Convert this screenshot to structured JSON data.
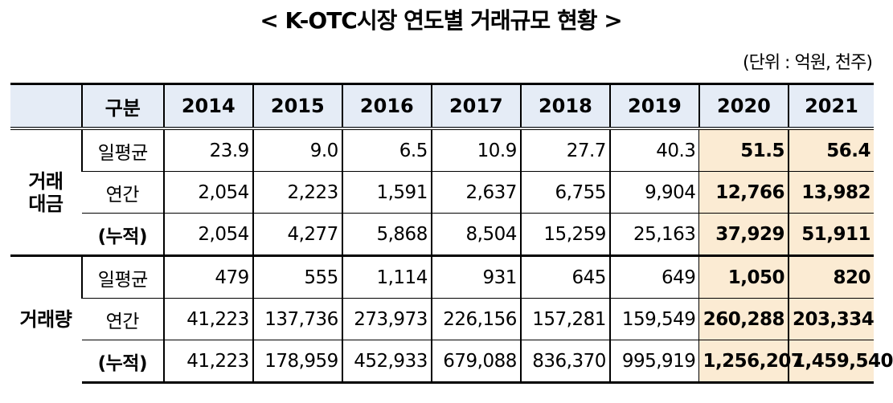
{
  "title": "< K-OTC시장 연도별 거래규모 현황 >",
  "unit": "(단위 : 억원, 천주)",
  "table": {
    "header": {
      "category": "구분",
      "years": [
        "2014",
        "2015",
        "2016",
        "2017",
        "2018",
        "2019",
        "2020",
        "2021"
      ]
    },
    "groups": [
      {
        "label": "거래\n대금",
        "label_line1": "거래",
        "label_line2": "대금",
        "rows": [
          {
            "label": "일평균",
            "values": [
              "23.9",
              "9.0",
              "6.5",
              "10.9",
              "27.7",
              "40.3",
              "51.5",
              "56.4"
            ]
          },
          {
            "label": "연간",
            "values": [
              "2,054",
              "2,223",
              "1,591",
              "2,637",
              "6,755",
              "9,904",
              "12,766",
              "13,982"
            ]
          },
          {
            "label": "(누적)",
            "values": [
              "2,054",
              "4,277",
              "5,868",
              "8,504",
              "15,259",
              "25,163",
              "37,929",
              "51,911"
            ]
          }
        ]
      },
      {
        "label": "거래량",
        "rows": [
          {
            "label": "일평균",
            "values": [
              "479",
              "555",
              "1,114",
              "931",
              "645",
              "649",
              "1,050",
              "820"
            ]
          },
          {
            "label": "연간",
            "values": [
              "41,223",
              "137,736",
              "273,973",
              "226,156",
              "157,281",
              "159,549",
              "260,288",
              "203,334"
            ]
          },
          {
            "label": "(누적)",
            "values": [
              "41,223",
              "178,959",
              "452,933",
              "679,088",
              "836,370",
              "995,919",
              "1,256,207",
              "1,459,540"
            ]
          }
        ]
      }
    ],
    "highlight_years": [
      "2020",
      "2021"
    ],
    "colors": {
      "header_bg": "#e5ecf6",
      "highlight_bg": "#fbebd3"
    }
  }
}
